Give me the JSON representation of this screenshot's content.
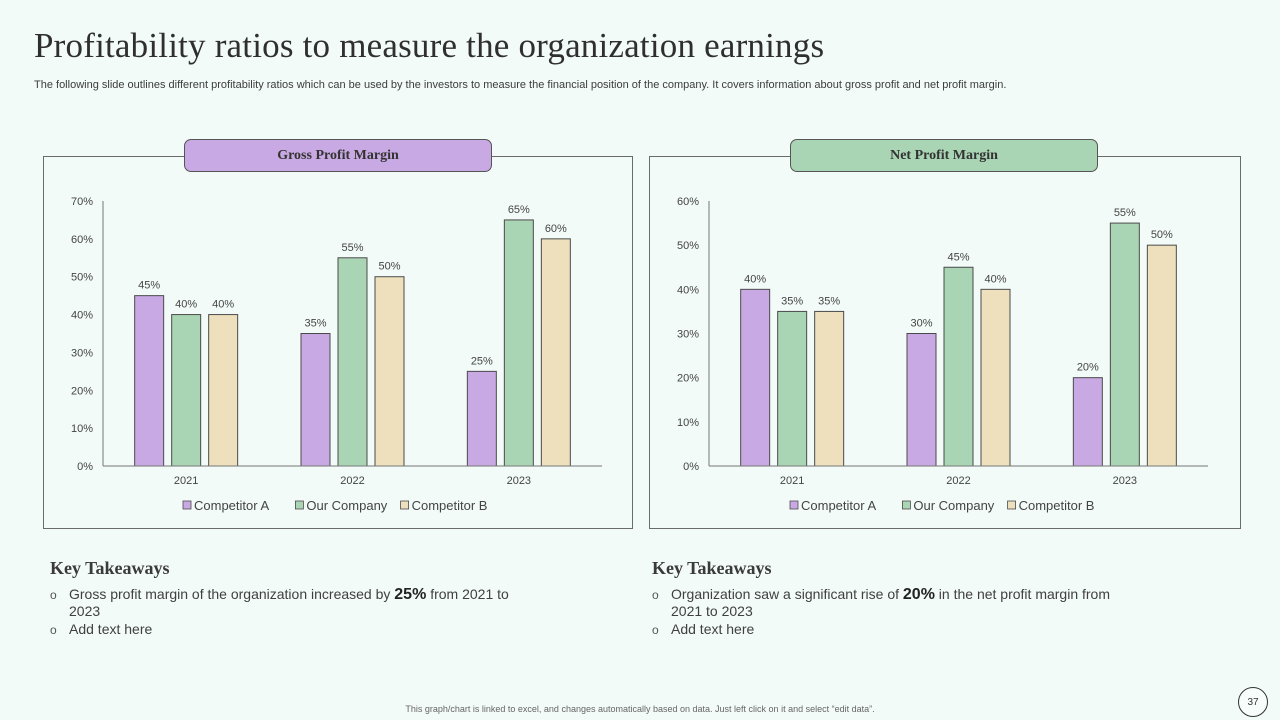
{
  "header": {
    "title": "Profitability ratios to measure the organization earnings",
    "subtitle": "The following slide outlines different profitability ratios which can be used by the investors to measure the financial position of the company. It covers information about gross profit and net profit margin."
  },
  "colors": {
    "competitor_a": "#c9a9e3",
    "our_company": "#a9d5b4",
    "competitor_b": "#eee0bd",
    "bar_stroke": "#4a4a4a"
  },
  "chart_data": [
    {
      "type": "bar",
      "title": "Gross Profit Margin",
      "categories": [
        "2021",
        "2022",
        "2023"
      ],
      "series": [
        {
          "name": "Competitor A",
          "values": [
            45,
            35,
            25
          ]
        },
        {
          "name": "Our Company",
          "values": [
            40,
            55,
            65
          ]
        },
        {
          "name": "Competitor B",
          "values": [
            40,
            50,
            60
          ]
        }
      ],
      "ylim": [
        0,
        70
      ],
      "yticks": [
        0,
        10,
        20,
        30,
        40,
        50,
        60,
        70
      ],
      "value_suffix": "%",
      "legend": "bottom"
    },
    {
      "type": "bar",
      "title": "Net Profit  Margin",
      "categories": [
        "2021",
        "2022",
        "2023"
      ],
      "series": [
        {
          "name": "Competitor A",
          "values": [
            40,
            30,
            20
          ]
        },
        {
          "name": "Our Company",
          "values": [
            35,
            45,
            55
          ]
        },
        {
          "name": "Competitor B",
          "values": [
            35,
            40,
            50
          ]
        }
      ],
      "ylim": [
        0,
        60
      ],
      "yticks": [
        0,
        10,
        20,
        30,
        40,
        50,
        60
      ],
      "value_suffix": "%",
      "legend": "bottom"
    }
  ],
  "takeaways": [
    {
      "heading": "Key Takeaways",
      "bullet1_pre": "Gross profit margin of the organization increased by ",
      "bullet1_bold": "25%",
      "bullet1_post": " from 2021 to 2023",
      "bullet2": "Add text here",
      "bullet_glyph": "o"
    },
    {
      "heading": "Key Takeaways",
      "bullet1_pre": "Organization saw a significant rise of ",
      "bullet1_bold": "20%",
      "bullet1_post": " in the net profit margin from 2021 to 2023",
      "bullet2": "Add text here",
      "bullet_glyph": "o"
    }
  ],
  "footer": {
    "note": "This graph/chart is linked to excel, and changes automatically based on data. Just left click on it and select “edit data”.",
    "page_number": "37"
  }
}
